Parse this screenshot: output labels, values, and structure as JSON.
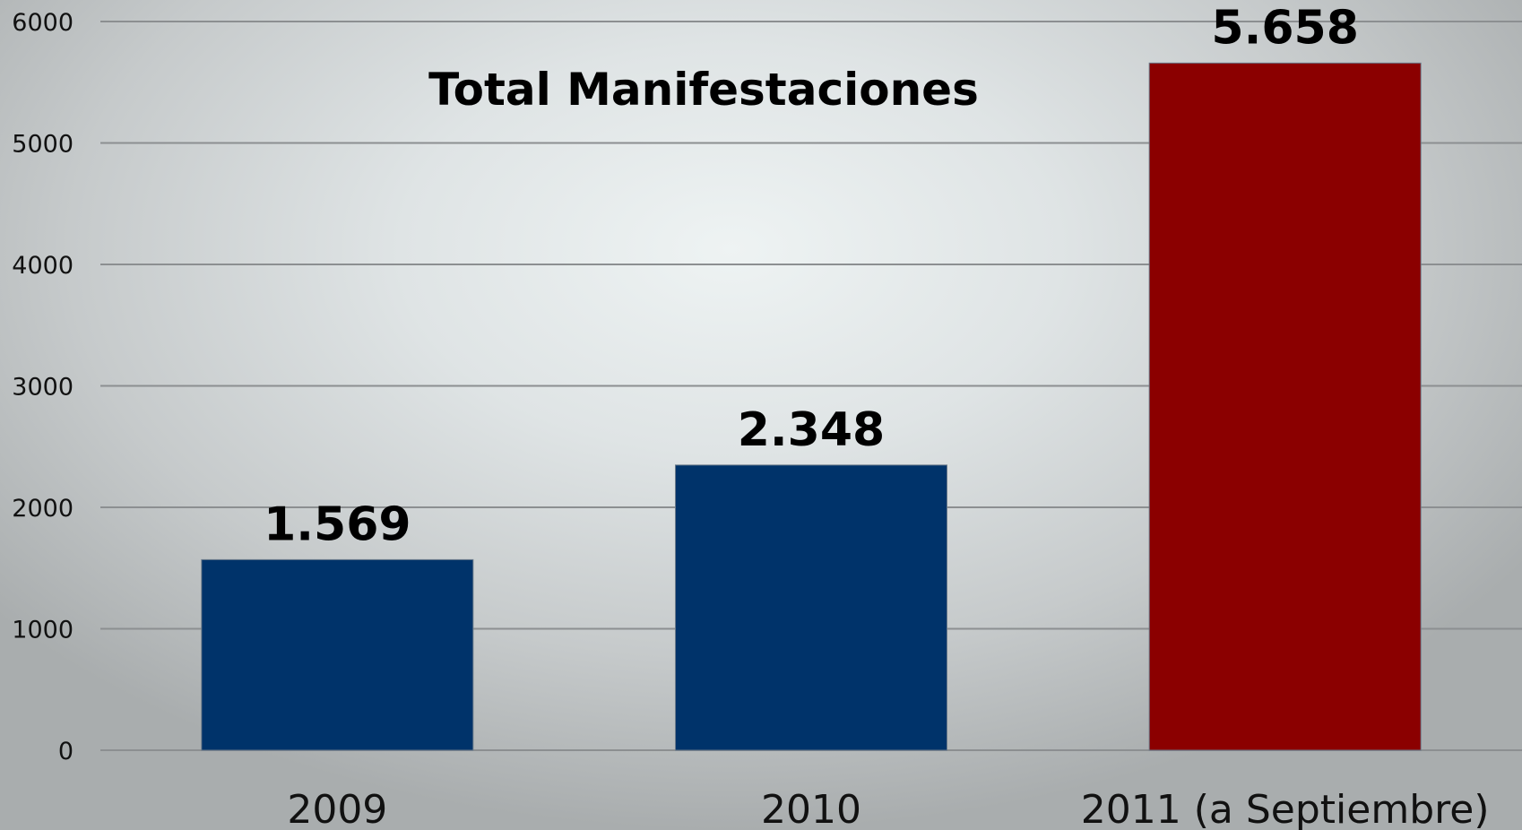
{
  "chart_data": {
    "type": "bar",
    "title": "Total Manifestaciones",
    "xlabel": "",
    "ylabel": "",
    "categories": [
      "2009",
      "2010",
      "2011 (a Septiembre)"
    ],
    "values": [
      1569,
      2348,
      5658
    ],
    "data_labels": [
      "1.569",
      "2.348",
      "5.658"
    ],
    "bar_colors": [
      "#00336a",
      "#00336a",
      "#8b0000"
    ],
    "ylim": [
      0,
      6000
    ],
    "yticks": [
      0,
      1000,
      2000,
      3000,
      4000,
      5000,
      6000
    ],
    "grid": true,
    "legend": "none"
  }
}
